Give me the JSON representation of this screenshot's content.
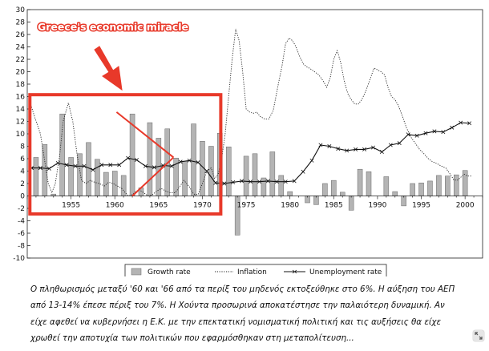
{
  "chart_data": {
    "type": "bar",
    "title": "",
    "xlabel": "",
    "ylabel": "",
    "ylim": [
      -10,
      30
    ],
    "xlim": [
      1950,
      2002
    ],
    "y_ticks": [
      -10,
      -8,
      -6,
      -4,
      -2,
      0,
      2,
      4,
      6,
      8,
      10,
      12,
      14,
      16,
      18,
      20,
      22,
      24,
      26,
      28,
      30
    ],
    "x_ticks": [
      1955,
      1960,
      1965,
      1970,
      1975,
      1980,
      1985,
      1990,
      1995,
      2000
    ],
    "x_tick_labels": [
      "1955",
      "1960",
      "1965",
      "1970",
      "1975",
      "1980",
      "1985",
      "1990",
      "1995",
      "2000"
    ],
    "grid": false,
    "legend_position": "bottom",
    "years": [
      1951,
      1952,
      1953,
      1954,
      1955,
      1956,
      1957,
      1958,
      1959,
      1960,
      1961,
      1962,
      1963,
      1964,
      1965,
      1966,
      1967,
      1968,
      1969,
      1970,
      1971,
      1972,
      1973,
      1974,
      1975,
      1976,
      1977,
      1978,
      1979,
      1980,
      1981,
      1982,
      1983,
      1984,
      1985,
      1986,
      1987,
      1988,
      1989,
      1990,
      1991,
      1992,
      1993,
      1994,
      1995,
      1996,
      1997,
      1998,
      1999,
      2000,
      2001
    ],
    "series": [
      {
        "name": "Growth rate",
        "type": "bar",
        "color": "#b4b4b4",
        "values": [
          6.2,
          8.3,
          0.3,
          13.2,
          6.2,
          6.8,
          8.6,
          5.9,
          3.8,
          4.0,
          3.3,
          13.2,
          1.3,
          11.8,
          9.3,
          10.8,
          6.1,
          5.6,
          11.6,
          8.8,
          8.0,
          10.1,
          7.9,
          -6.3,
          6.4,
          6.8,
          2.9,
          7.1,
          3.3,
          0.7,
          0.0,
          -1.1,
          -1.4,
          2.0,
          2.5,
          0.6,
          -2.3,
          4.3,
          3.9,
          0.0,
          3.1,
          0.7,
          -1.6,
          2.0,
          2.1,
          2.4,
          3.3,
          3.2,
          3.4,
          4.1,
          0.0
        ]
      },
      {
        "name": "Inflation",
        "type": "line",
        "style": "dotted",
        "color": "#222222",
        "x": [
          1950.4,
          1950.9,
          1951.5,
          1952.0,
          1952.4,
          1952.8,
          1953.2,
          1953.7,
          1954.1,
          1954.7,
          1955.2,
          1955.7,
          1956.2,
          1956.7,
          1957.2,
          1957.7,
          1958.2,
          1958.8,
          1959.3,
          1959.8,
          1960.3,
          1960.8,
          1961.2,
          1961.6,
          1962.0,
          1962.4,
          1962.8,
          1963.3,
          1963.8,
          1964.3,
          1964.8,
          1965.3,
          1965.8,
          1966.3,
          1966.9,
          1967.4,
          1967.9,
          1968.5,
          1969.0,
          1969.5,
          1970.0,
          1970.5,
          1971.0,
          1971.4,
          1971.8,
          1972.2,
          1972.6,
          1973.0,
          1973.4,
          1973.8,
          1974.2,
          1974.6,
          1975.0,
          1975.4,
          1975.8,
          1976.2,
          1976.6,
          1977.1,
          1977.6,
          1978.1,
          1978.6,
          1979.1,
          1979.5,
          1979.9,
          1980.3,
          1980.7,
          1981.1,
          1981.5,
          1981.9,
          1982.3,
          1982.8,
          1983.3,
          1983.8,
          1984.2,
          1984.6,
          1985.0,
          1985.4,
          1985.8,
          1986.2,
          1986.6,
          1987.0,
          1987.4,
          1987.8,
          1988.2,
          1988.7,
          1989.2,
          1989.6,
          1990.0,
          1990.4,
          1990.8,
          1991.2,
          1991.6,
          1992.0,
          1992.4,
          1992.8,
          1993.3,
          1993.8,
          1994.3,
          1994.8,
          1995.3,
          1995.8,
          1996.3,
          1996.8,
          1997.3,
          1997.8,
          1998.3,
          1998.7,
          1999.1,
          1999.5,
          1999.9,
          2000.3,
          2000.7
        ],
        "values": [
          14.7,
          12.5,
          10.0,
          5.6,
          2.0,
          0.5,
          2.0,
          6.5,
          12.0,
          15.0,
          12.0,
          6.5,
          2.5,
          2.0,
          2.5,
          2.2,
          2.0,
          1.6,
          2.2,
          2.0,
          1.6,
          1.2,
          0.5,
          0.0,
          0.2,
          0.7,
          1.0,
          0.5,
          0.0,
          0.2,
          0.8,
          1.2,
          0.8,
          0.5,
          0.5,
          1.5,
          2.5,
          1.5,
          0.3,
          0.2,
          2.0,
          4.0,
          4.5,
          2.8,
          3.5,
          6.0,
          10.0,
          16.0,
          22.0,
          26.9,
          25.0,
          20.0,
          14.0,
          13.5,
          13.3,
          13.5,
          12.8,
          12.4,
          12.4,
          13.8,
          17.5,
          21.0,
          24.5,
          25.4,
          25.0,
          24.0,
          22.5,
          21.3,
          20.8,
          20.5,
          20.0,
          19.5,
          18.5,
          17.5,
          19.0,
          22.0,
          23.4,
          21.5,
          18.5,
          16.5,
          15.5,
          14.8,
          14.8,
          15.5,
          17.0,
          19.0,
          20.6,
          20.3,
          20.0,
          19.5,
          17.5,
          16.0,
          15.5,
          14.5,
          13.0,
          11.0,
          9.5,
          8.5,
          7.5,
          6.8,
          6.0,
          5.5,
          5.2,
          4.8,
          4.5,
          3.5,
          2.6,
          2.5,
          3.0,
          3.5,
          3.2,
          3.2
        ]
      },
      {
        "name": "Unemployment rate",
        "type": "line",
        "style": "solid",
        "marker": "x",
        "color": "#111111",
        "x": [
          1950.5,
          1951.5,
          1952.5,
          1953.5,
          1954.5,
          1955.5,
          1956.5,
          1957.5,
          1958.5,
          1959.5,
          1960.5,
          1961.5,
          1962.5,
          1963.5,
          1964.5,
          1965.5,
          1966.5,
          1967.5,
          1968.5,
          1969.5,
          1970.5,
          1971.5,
          1972.5,
          1973.5,
          1974.5,
          1975.5,
          1976.5,
          1977.5,
          1978.5,
          1979.5,
          1980.5,
          1981.5,
          1982.5,
          1983.5,
          1984.5,
          1985.5,
          1986.5,
          1987.5,
          1988.5,
          1989.5,
          1990.5,
          1991.5,
          1992.5,
          1993.5,
          1994.5,
          1995.5,
          1996.5,
          1997.5,
          1998.5,
          1999.5,
          2000.5
        ],
        "values": [
          4.5,
          4.5,
          4.4,
          5.3,
          5.0,
          4.8,
          4.8,
          4.2,
          5.0,
          5.0,
          5.0,
          6.1,
          5.8,
          4.8,
          4.6,
          4.9,
          4.8,
          5.5,
          5.7,
          5.4,
          4.0,
          2.1,
          2.0,
          2.2,
          2.4,
          2.3,
          2.3,
          2.4,
          2.3,
          2.3,
          2.4,
          3.9,
          5.7,
          8.2,
          8.0,
          7.6,
          7.3,
          7.5,
          7.5,
          7.8,
          7.1,
          8.2,
          8.5,
          9.9,
          9.7,
          10.1,
          10.4,
          10.3,
          11.0,
          11.8,
          11.7
        ]
      }
    ],
    "legend": [
      "Growth rate",
      "Inflation",
      "Unemployment rate"
    ],
    "annotation": {
      "text": "Greece's economic miracle",
      "highlight_x": [
        1950.3,
        1972.1
      ],
      "highlight_y": [
        -2.9,
        16.3
      ],
      "trend_lines": [
        {
          "from": [
            1960.2,
            13.5
          ],
          "to": [
            1966.7,
            6.2
          ]
        },
        {
          "from": [
            1962.0,
            0.0
          ],
          "to": [
            1966.7,
            6.2
          ]
        }
      ],
      "color": "#e8392a"
    }
  },
  "caption": [
    "Ο πληθωρισμός μεταξύ '60 και '66 από τα περίξ του μηδενός εκτοξεύθηκε στο 6%. Η αύξηση του ΑΕΠ",
    "από 13-14% έπεσε πέριξ του 7%. Η Χούντα προσωρινά αποκατέστησε την παλαιότερη δυναμική. Αν",
    "είχε αφεθεί να κυβερνήσει η Ε.Κ. με την επεκτατική νομισματική πολιτική και τις αυξήσεις θα είχε",
    "χρωθεί την  αποτυχία των πολιτικών που εφαρμόσθηκαν στη μεταπολίτευση..."
  ],
  "ui": {
    "expand_icon": "expand-arrows-icon",
    "accent_color": "#e8392a"
  }
}
